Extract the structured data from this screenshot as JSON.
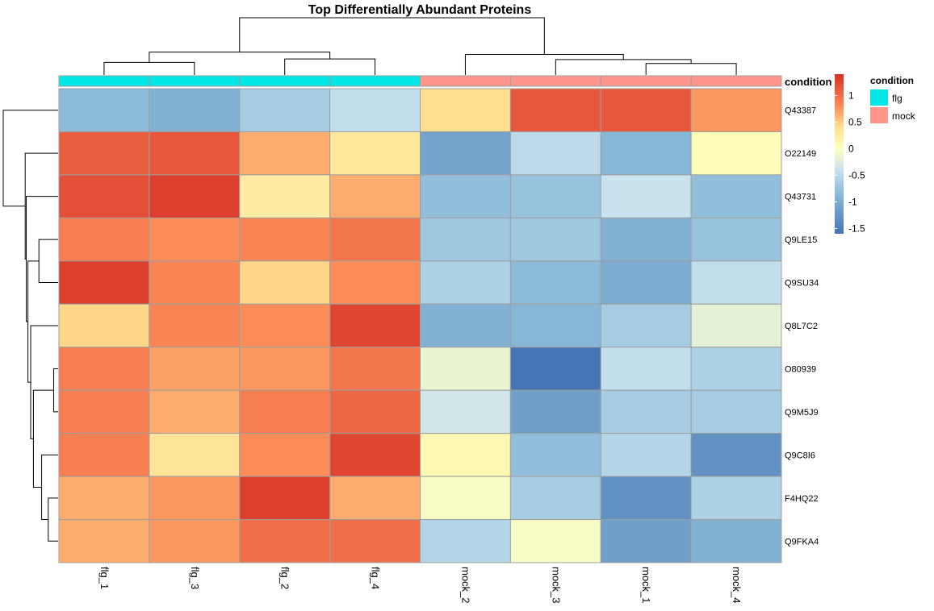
{
  "chart_data": {
    "type": "heatmap",
    "title": "Top Differentially Abundant Proteins",
    "columns": [
      "flg_1",
      "flg_3",
      "flg_2",
      "flg_4",
      "mock_2",
      "mock_3",
      "mock_1",
      "mock_4"
    ],
    "rows": [
      "Q43387",
      "O22149",
      "Q43731",
      "Q9LE15",
      "Q9SU34",
      "Q8L7C2",
      "O80939",
      "Q9M5J9",
      "Q9C8I6",
      "F4HQ22",
      "Q9FKA4"
    ],
    "values": [
      [
        -0.85,
        -0.95,
        -0.65,
        -0.45,
        0.4,
        1.15,
        1.15,
        0.75
      ],
      [
        1.1,
        1.15,
        0.65,
        0.3,
        -1.1,
        -0.5,
        -0.9,
        0.05
      ],
      [
        1.2,
        1.3,
        0.25,
        0.65,
        -0.8,
        -0.75,
        -0.4,
        -0.8
      ],
      [
        0.9,
        0.8,
        0.85,
        0.95,
        -0.7,
        -0.7,
        -0.95,
        -0.75
      ],
      [
        1.3,
        0.85,
        0.45,
        0.8,
        -0.6,
        -0.85,
        -1.0,
        -0.45
      ],
      [
        0.45,
        0.85,
        0.8,
        1.25,
        -0.95,
        -0.9,
        -0.65,
        -0.2
      ],
      [
        0.9,
        0.7,
        0.75,
        0.95,
        -0.15,
        -1.65,
        -0.45,
        -0.6
      ],
      [
        0.9,
        0.65,
        0.9,
        1.05,
        -0.35,
        -1.15,
        -0.65,
        -0.65
      ],
      [
        0.9,
        0.35,
        0.8,
        1.25,
        0.1,
        -0.8,
        -0.55,
        -1.3
      ],
      [
        0.65,
        0.75,
        1.3,
        0.65,
        -0.05,
        -0.65,
        -1.3,
        -0.6
      ],
      [
        0.65,
        0.75,
        1.0,
        1.0,
        -0.55,
        -0.05,
        -1.15,
        -0.95
      ]
    ],
    "row_dendrogram": {
      "merges": [
        [
          -10,
          -11
        ],
        [
          -7,
          -8
        ],
        [
          -9,
          1
        ],
        [
          2,
          3
        ],
        [
          -6,
          4
        ],
        [
          -4,
          -5
        ],
        [
          5,
          6
        ],
        [
          -3,
          7
        ],
        [
          -2,
          8
        ],
        [
          -1,
          9
        ]
      ],
      "heights": [
        0.18,
        0.08,
        0.3,
        0.45,
        0.5,
        0.35,
        0.55,
        0.58,
        0.6,
        1.0
      ]
    },
    "col_dendrogram": {
      "merges": [
        [
          -1,
          -2
        ],
        [
          -3,
          -4
        ],
        [
          1,
          2
        ],
        [
          -7,
          -8
        ],
        [
          -6,
          4
        ],
        [
          -5,
          5
        ],
        [
          3,
          6
        ]
      ],
      "heights": [
        0.22,
        0.28,
        0.4,
        0.2,
        0.27,
        0.36,
        1.0
      ]
    },
    "annotation": {
      "title": "condition",
      "column_values": [
        "flg",
        "flg",
        "flg",
        "flg",
        "mock",
        "mock",
        "mock",
        "mock"
      ],
      "levels": [
        {
          "name": "flg",
          "color": "#00e5e5"
        },
        {
          "name": "mock",
          "color": "#ff968c"
        }
      ]
    },
    "color_scale": {
      "min": -1.6,
      "max": 1.4,
      "stops": [
        {
          "value": -1.6,
          "color": "#4575b4"
        },
        {
          "value": -0.8,
          "color": "#91bfdb"
        },
        {
          "value": -0.4,
          "color": "#c9e2ee"
        },
        {
          "value": 0.0,
          "color": "#ffffbf"
        },
        {
          "value": 0.4,
          "color": "#fee090"
        },
        {
          "value": 0.8,
          "color": "#fc8d59"
        },
        {
          "value": 1.4,
          "color": "#d73027"
        }
      ],
      "ticks": [
        1,
        0.5,
        0,
        -0.5,
        -1,
        -1.5
      ]
    }
  }
}
